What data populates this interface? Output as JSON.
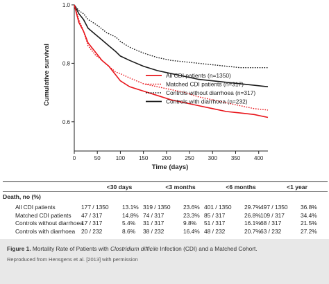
{
  "chart_data": {
    "type": "line",
    "xlabel": "Time (days)",
    "ylabel": "Cumulative survival",
    "xlim": [
      0,
      420
    ],
    "ylim": [
      0.5,
      1.0
    ],
    "x_ticks": [
      0,
      50,
      100,
      150,
      200,
      250,
      300,
      350,
      400
    ],
    "y_ticks": [
      0.6,
      0.8,
      1.0
    ],
    "x_tick_labels": [
      "0",
      "50",
      "100",
      "150",
      "200",
      "250",
      "300",
      "350",
      "400"
    ],
    "y_tick_labels": [
      "0.6",
      "0.8",
      "1.0"
    ],
    "legend_position": "right",
    "series": [
      {
        "name": "All CDI patients (n=1350)",
        "color": "#e8141a",
        "style": "solid",
        "x": [
          0,
          10,
          20,
          30,
          45,
          60,
          75,
          90,
          100,
          120,
          150,
          180,
          210,
          240,
          270,
          300,
          330,
          360,
          390,
          420
        ],
        "y": [
          1.0,
          0.94,
          0.91,
          0.87,
          0.84,
          0.81,
          0.79,
          0.76,
          0.74,
          0.72,
          0.705,
          0.69,
          0.675,
          0.665,
          0.655,
          0.645,
          0.635,
          0.63,
          0.625,
          0.615
        ]
      },
      {
        "name": "Matched CDI patients (n=317)",
        "color": "#e8141a",
        "style": "dotted",
        "x": [
          0,
          10,
          20,
          30,
          45,
          60,
          75,
          90,
          100,
          120,
          150,
          180,
          210,
          240,
          270,
          300,
          330,
          360,
          390,
          420
        ],
        "y": [
          1.0,
          0.95,
          0.91,
          0.86,
          0.83,
          0.81,
          0.79,
          0.77,
          0.765,
          0.75,
          0.73,
          0.72,
          0.71,
          0.7,
          0.685,
          0.675,
          0.665,
          0.655,
          0.645,
          0.64
        ]
      },
      {
        "name": "Controls without diarrhoea (n=317)",
        "color": "#1a1a1a",
        "style": "dotted",
        "x": [
          0,
          10,
          20,
          30,
          50,
          70,
          90,
          100,
          120,
          150,
          180,
          210,
          240,
          270,
          300,
          330,
          360,
          390,
          420
        ],
        "y": [
          1.0,
          0.98,
          0.97,
          0.95,
          0.93,
          0.905,
          0.89,
          0.875,
          0.855,
          0.835,
          0.82,
          0.81,
          0.805,
          0.8,
          0.795,
          0.79,
          0.785,
          0.785,
          0.785
        ]
      },
      {
        "name": "Controls with diarrhoea (n=232)",
        "color": "#1a1a1a",
        "style": "solid",
        "x": [
          0,
          10,
          20,
          30,
          45,
          60,
          75,
          90,
          100,
          120,
          150,
          180,
          210,
          240,
          270,
          300,
          330,
          360,
          390,
          420
        ],
        "y": [
          1.0,
          0.97,
          0.95,
          0.92,
          0.9,
          0.88,
          0.86,
          0.84,
          0.825,
          0.81,
          0.79,
          0.775,
          0.765,
          0.755,
          0.745,
          0.74,
          0.735,
          0.73,
          0.725,
          0.72
        ]
      }
    ]
  },
  "table": {
    "title": "Death, no (%)",
    "columns": [
      "<30 days",
      "<3 months",
      "<6 months",
      "<1 year"
    ],
    "rows": [
      {
        "label": "All CDI patients",
        "cells": [
          [
            "177 / 1350",
            "13.1%"
          ],
          [
            "319 / 1350",
            "23.6%"
          ],
          [
            "401 / 1350",
            "29.7%"
          ],
          [
            "497 / 1350",
            "36.8%"
          ]
        ]
      },
      {
        "label": "Matched CDI patients",
        "cells": [
          [
            "47 / 317",
            "14.8%"
          ],
          [
            "74 / 317",
            "23.3%"
          ],
          [
            "85 / 317",
            "26.8%"
          ],
          [
            "109 / 317",
            "34.4%"
          ]
        ]
      },
      {
        "label": "Controls without diarrhoea",
        "cells": [
          [
            "17 / 317",
            "5.4%"
          ],
          [
            "31 / 317",
            "9.8%"
          ],
          [
            "51 / 317",
            "16.1%"
          ],
          [
            "68 / 317",
            "21.5%"
          ]
        ]
      },
      {
        "label": "Controls with diarrhoea",
        "cells": [
          [
            "20 / 232",
            "8.6%"
          ],
          [
            "38 / 232",
            "16.4%"
          ],
          [
            "48 / 232",
            "20.7%"
          ],
          [
            "63 / 232",
            "27.2%"
          ]
        ]
      }
    ]
  },
  "caption": {
    "figure_label": "Figure 1.",
    "text_before": "Mortality Rate of Patients with ",
    "text_italic": "Clostridium difficile",
    "text_after": " Infection (CDI) and a Matched Cohort.",
    "source": "Reproduced from Hensgens et al. [2013] with permission"
  },
  "colors": {
    "red": "#e8141a",
    "black": "#1a1a1a",
    "caption_bg": "#e8e8e8"
  }
}
